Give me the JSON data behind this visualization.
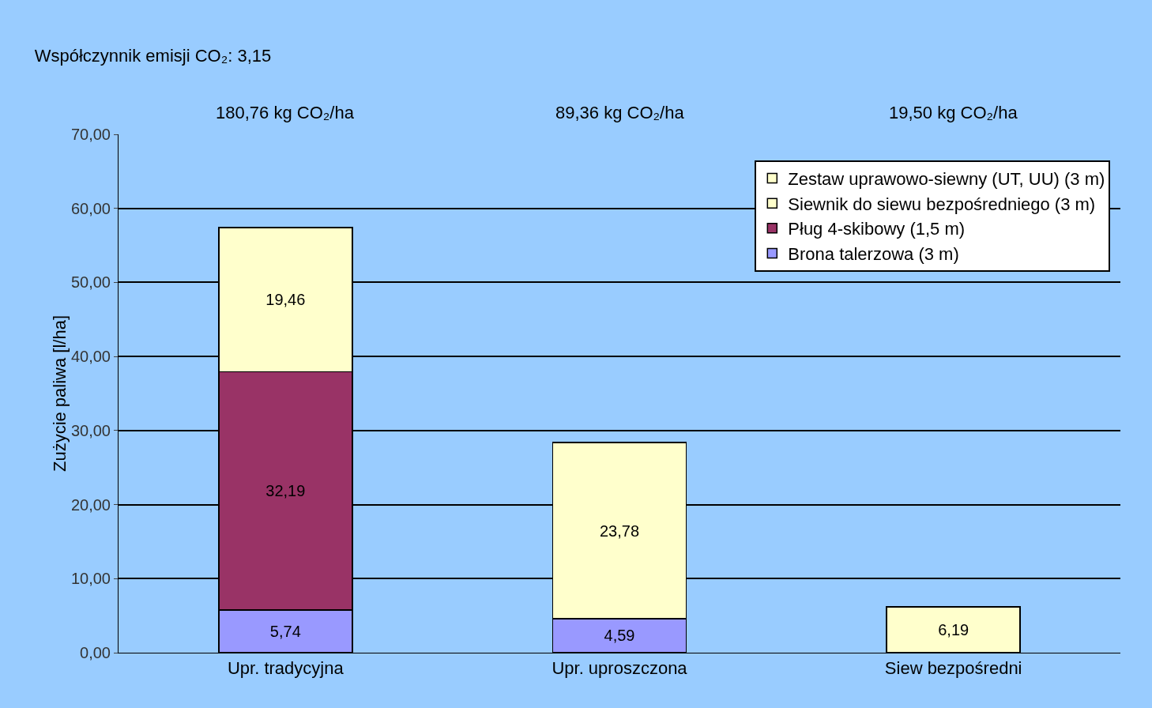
{
  "chart_data": {
    "type": "bar",
    "stacked": true,
    "title": "Współczynnik emisji CO₂: 3,15",
    "ylabel": "Zużycie paliwa [l/ha]",
    "categories": [
      "Upr. tradycyjna",
      "Upr. uproszczona",
      "Siew bezpośredni"
    ],
    "series": [
      {
        "name": "Brona talerzowa (3 m)",
        "color": "#9999ff",
        "values": [
          5.74,
          4.59,
          null
        ],
        "value_labels": [
          "5,74",
          "4,59",
          null
        ]
      },
      {
        "name": "Pług 4-skibowy (1,5 m)",
        "color": "#993366",
        "values": [
          32.19,
          null,
          null
        ],
        "value_labels": [
          "32,19",
          null,
          null
        ]
      },
      {
        "name": "Siewnik do siewu bezpośredniego (3 m)",
        "color": "#ffffcc",
        "values": [
          null,
          null,
          6.19
        ],
        "value_labels": [
          null,
          null,
          "6,19"
        ]
      },
      {
        "name": "Zestaw uprawowo-siewny (UT, UU) (3 m)",
        "color": "#ffffcc",
        "values": [
          19.46,
          23.78,
          null
        ],
        "value_labels": [
          "19,46",
          "23,78",
          null
        ]
      }
    ],
    "annotations": [
      "180,76 kg CO₂/ha",
      "89,36 kg CO₂/ha",
      "19,50 kg CO₂/ha"
    ],
    "ylim": [
      0,
      70
    ],
    "yticks": [
      {
        "value": 0,
        "label": "0,00"
      },
      {
        "value": 10,
        "label": "10,00"
      },
      {
        "value": 20,
        "label": "20,00"
      },
      {
        "value": 30,
        "label": "30,00"
      },
      {
        "value": 40,
        "label": "40,00"
      },
      {
        "value": 50,
        "label": "50,00"
      },
      {
        "value": 60,
        "label": "60,00"
      },
      {
        "value": 70,
        "label": "70,00"
      }
    ],
    "grid": "y",
    "legend": "top right"
  }
}
